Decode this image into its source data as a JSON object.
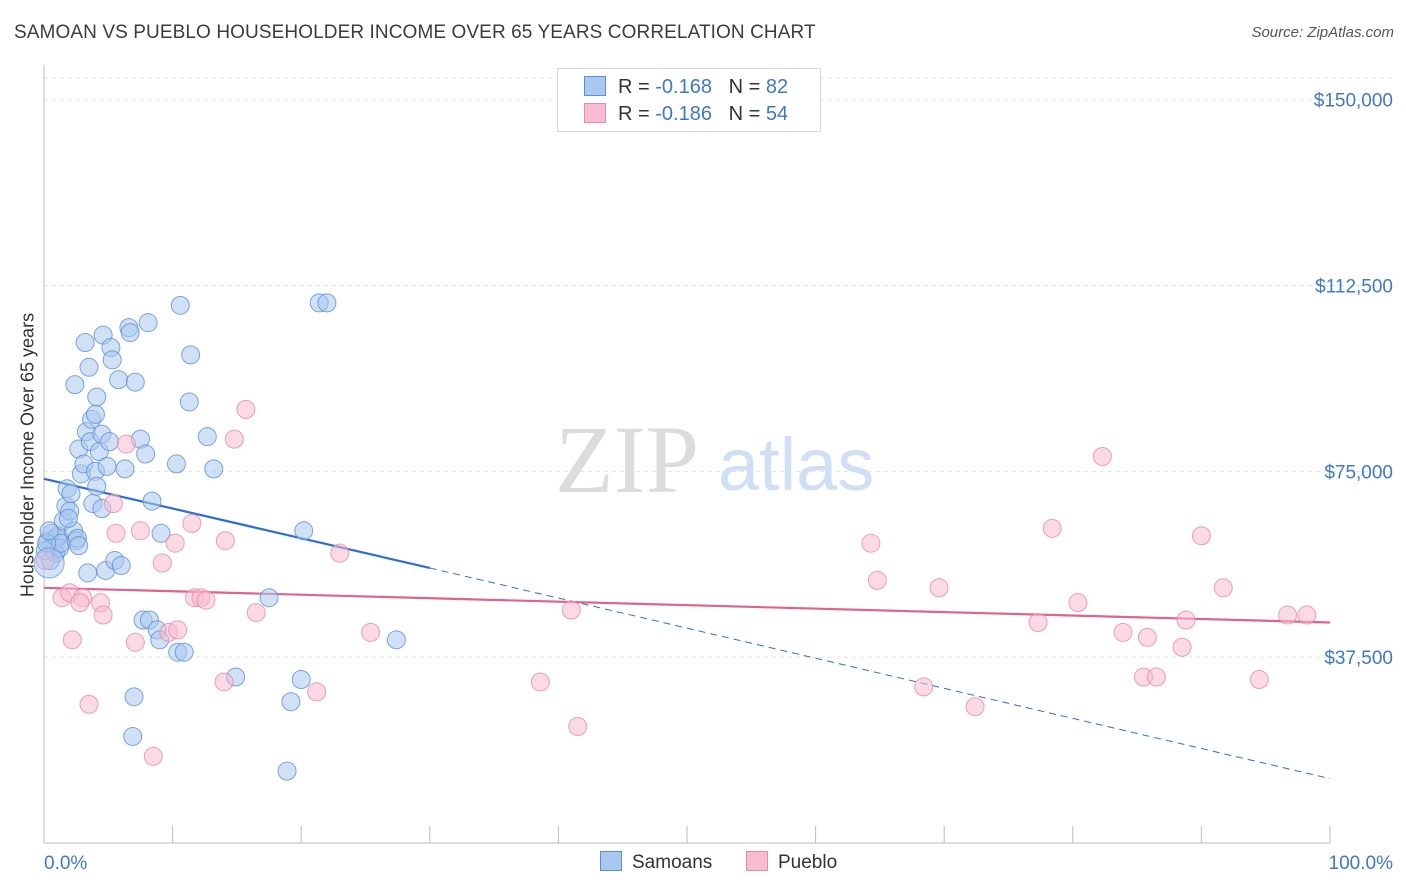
{
  "header": {
    "title": "SAMOAN VS PUEBLO HOUSEHOLDER INCOME OVER 65 YEARS CORRELATION CHART",
    "source": "Source: ZipAtlas.com"
  },
  "watermark": {
    "zip": "ZIP",
    "atlas": "atlas"
  },
  "colors": {
    "samoans_fill": "#a9c8ef",
    "samoans_stroke": "#5b8fd6",
    "samoans_line": "#2d6fd0",
    "pueblo_fill": "#f7bcd0",
    "pueblo_stroke": "#e48aaa",
    "pueblo_line": "#e0628f",
    "tick_label": "#3f78c9"
  },
  "legend": {
    "rows": [
      {
        "r_label": "R =",
        "r_value": "-0.168",
        "n_label": "N =",
        "n_value": "82"
      },
      {
        "r_label": "R =",
        "r_value": "-0.186",
        "n_label": "N =",
        "n_value": "54"
      }
    ]
  },
  "chart_data": {
    "type": "scatter",
    "ylabel": "Householder Income Over 65 years",
    "xlabel": "",
    "xlim": [
      0,
      100
    ],
    "ylim": [
      0,
      157000
    ],
    "x_tick_labels": [
      "0.0%",
      "100.0%"
    ],
    "y_ticks": [
      37500,
      75000,
      112500,
      150000
    ],
    "y_tick_labels": [
      "$37,500",
      "$75,000",
      "$112,500",
      "$150,000"
    ],
    "grid": true,
    "legend_position": "top-center",
    "series": [
      {
        "name": "Samoans",
        "r": -0.168,
        "n": 82,
        "trend": {
          "x0": 0,
          "y0": 73500,
          "x_solid_end": 30,
          "y_solid_end": 55500,
          "x1": 100,
          "y1": 13000
        },
        "points": [
          [
            0.3,
            61000
          ],
          [
            0.5,
            57000
          ],
          [
            0.6,
            62500
          ],
          [
            0.7,
            60000
          ],
          [
            0.8,
            59000
          ],
          [
            0.9,
            58500
          ],
          [
            1.0,
            61500
          ],
          [
            1.1,
            62000
          ],
          [
            1.2,
            59500
          ],
          [
            1.3,
            60500
          ],
          [
            1.5,
            65000
          ],
          [
            1.7,
            68000
          ],
          [
            1.8,
            71500
          ],
          [
            2.0,
            67000
          ],
          [
            2.1,
            70500
          ],
          [
            2.3,
            63000
          ],
          [
            2.5,
            61000
          ],
          [
            2.7,
            79500
          ],
          [
            2.4,
            92500
          ],
          [
            2.6,
            61500
          ],
          [
            2.7,
            60000
          ],
          [
            2.9,
            74500
          ],
          [
            3.1,
            76500
          ],
          [
            3.3,
            83000
          ],
          [
            3.2,
            101000
          ],
          [
            3.4,
            54500
          ],
          [
            3.6,
            81000
          ],
          [
            3.5,
            96000
          ],
          [
            3.7,
            85500
          ],
          [
            3.8,
            68500
          ],
          [
            4.0,
            75000
          ],
          [
            4.1,
            72000
          ],
          [
            4.1,
            90000
          ],
          [
            4.0,
            86500
          ],
          [
            4.3,
            79000
          ],
          [
            4.5,
            82500
          ],
          [
            4.5,
            67500
          ],
          [
            4.6,
            102500
          ],
          [
            4.8,
            55000
          ],
          [
            4.9,
            76000
          ],
          [
            5.1,
            81000
          ],
          [
            5.2,
            100000
          ],
          [
            5.3,
            97500
          ],
          [
            5.5,
            57000
          ],
          [
            5.8,
            93500
          ],
          [
            6.3,
            75500
          ],
          [
            6.6,
            104000
          ],
          [
            6.7,
            103000
          ],
          [
            7.0,
            29500
          ],
          [
            6.9,
            21500
          ],
          [
            7.1,
            93000
          ],
          [
            7.5,
            81500
          ],
          [
            7.7,
            45000
          ],
          [
            7.9,
            78500
          ],
          [
            8.1,
            105000
          ],
          [
            8.2,
            45000
          ],
          [
            8.4,
            69000
          ],
          [
            8.8,
            43000
          ],
          [
            9.0,
            41000
          ],
          [
            9.1,
            62500
          ],
          [
            10.3,
            76500
          ],
          [
            10.4,
            38500
          ],
          [
            10.6,
            108500
          ],
          [
            10.9,
            38500
          ],
          [
            11.3,
            89000
          ],
          [
            11.4,
            98500
          ],
          [
            12.7,
            82000
          ],
          [
            13.2,
            75500
          ],
          [
            14.9,
            33500
          ],
          [
            17.5,
            49500
          ],
          [
            18.9,
            14500
          ],
          [
            19.2,
            28500
          ],
          [
            20.0,
            33000
          ],
          [
            20.2,
            63000
          ],
          [
            21.4,
            109000
          ],
          [
            22.0,
            109000
          ],
          [
            27.4,
            41000
          ],
          [
            0.1,
            59000
          ],
          [
            0.2,
            60500
          ],
          [
            0.4,
            63000
          ],
          [
            1.9,
            65500
          ],
          [
            6.0,
            56000
          ]
        ]
      },
      {
        "name": "Pueblo",
        "r": -0.186,
        "n": 54,
        "trend": {
          "x0": 0,
          "y0": 51500,
          "x1": 100,
          "y1": 44500
        },
        "points": [
          [
            0.1,
            57000
          ],
          [
            1.4,
            49500
          ],
          [
            2.0,
            50500
          ],
          [
            2.2,
            41000
          ],
          [
            3.0,
            49500
          ],
          [
            3.5,
            28000
          ],
          [
            4.4,
            48500
          ],
          [
            4.6,
            46000
          ],
          [
            5.4,
            68500
          ],
          [
            5.6,
            62500
          ],
          [
            6.4,
            80500
          ],
          [
            7.1,
            40500
          ],
          [
            8.5,
            17500
          ],
          [
            9.2,
            56500
          ],
          [
            9.7,
            42500
          ],
          [
            10.4,
            43000
          ],
          [
            10.2,
            60500
          ],
          [
            11.5,
            64500
          ],
          [
            11.7,
            49500
          ],
          [
            12.2,
            49500
          ],
          [
            14.0,
            32500
          ],
          [
            14.1,
            61000
          ],
          [
            14.8,
            81500
          ],
          [
            15.7,
            87500
          ],
          [
            16.5,
            46500
          ],
          [
            21.2,
            30500
          ],
          [
            23.0,
            58500
          ],
          [
            25.4,
            42500
          ],
          [
            38.6,
            32500
          ],
          [
            41.0,
            47000
          ],
          [
            41.5,
            23500
          ],
          [
            64.3,
            60500
          ],
          [
            64.8,
            53000
          ],
          [
            68.4,
            31500
          ],
          [
            69.6,
            51500
          ],
          [
            72.4,
            27500
          ],
          [
            77.3,
            44500
          ],
          [
            78.4,
            63500
          ],
          [
            80.4,
            48500
          ],
          [
            82.3,
            78000
          ],
          [
            83.9,
            42500
          ],
          [
            85.8,
            41500
          ],
          [
            85.5,
            33500
          ],
          [
            86.5,
            33500
          ],
          [
            88.5,
            39500
          ],
          [
            88.8,
            45000
          ],
          [
            90.0,
            62000
          ],
          [
            91.7,
            51500
          ],
          [
            94.5,
            33000
          ],
          [
            96.7,
            46000
          ],
          [
            98.2,
            46000
          ],
          [
            2.8,
            48500
          ],
          [
            7.5,
            63000
          ],
          [
            12.6,
            49000
          ]
        ]
      }
    ]
  }
}
